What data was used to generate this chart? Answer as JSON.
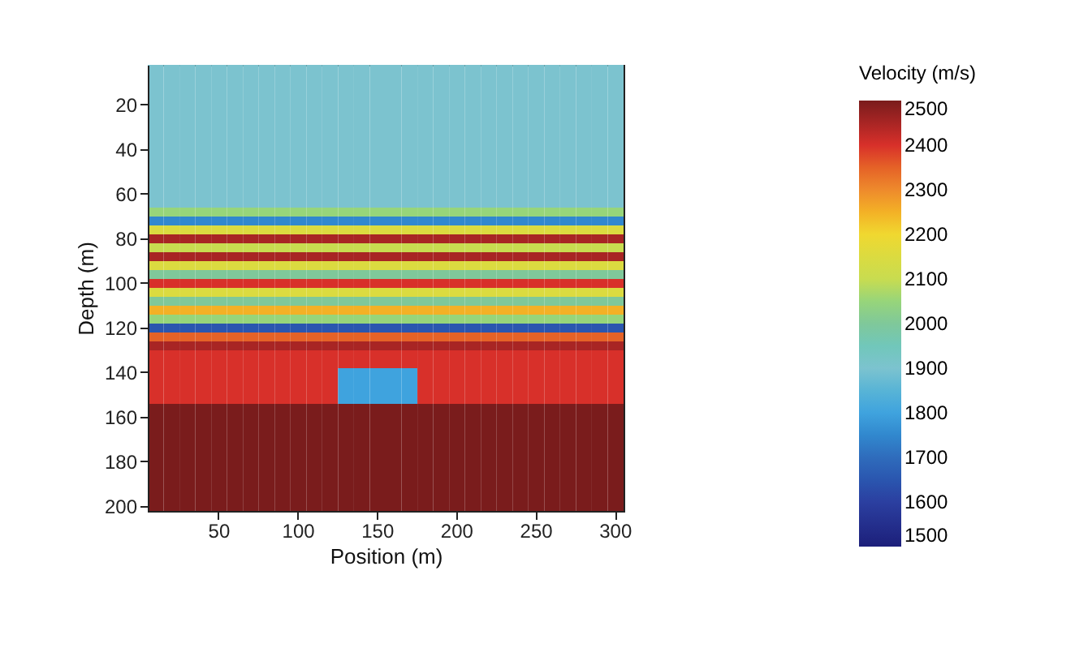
{
  "chart_data": {
    "type": "heatmap",
    "xlabel": "Position (m)",
    "ylabel": "Depth (m)",
    "clabel": "Velocity (m/s)",
    "categories": [
      null,
      null,
      null,
      null,
      "50",
      null,
      null,
      null,
      null,
      "100",
      null,
      null,
      null,
      null,
      "150",
      null,
      null,
      null,
      null,
      "200",
      null,
      null,
      null,
      null,
      "250",
      null,
      null,
      null,
      null,
      "300"
    ],
    "y_categories": [
      null,
      null,
      null,
      null,
      "20",
      null,
      null,
      null,
      null,
      "40",
      null,
      null,
      null,
      null,
      "60",
      null,
      null,
      null,
      null,
      "80",
      null,
      null,
      null,
      null,
      "100",
      null,
      null,
      null,
      null,
      "120",
      null,
      null,
      null,
      null,
      "140",
      null,
      null,
      null,
      null,
      "160",
      null,
      null,
      null,
      null,
      "180",
      null,
      null,
      null,
      null,
      "200"
    ],
    "cells": [
      [
        1900,
        1900,
        1900,
        1900,
        1900,
        1900,
        1900,
        1900,
        1900,
        1900,
        1900,
        1900,
        1900,
        1900,
        1900,
        1900,
        1900,
        1900,
        1900,
        1900,
        1900,
        1900,
        1900,
        1900,
        1900,
        1900,
        1900,
        1900,
        1900,
        1900
      ],
      [
        1900,
        1900,
        1900,
        1900,
        1900,
        1900,
        1900,
        1900,
        1900,
        1900,
        1900,
        1900,
        1900,
        1900,
        1900,
        1900,
        1900,
        1900,
        1900,
        1900,
        1900,
        1900,
        1900,
        1900,
        1900,
        1900,
        1900,
        1900,
        1900,
        1900
      ],
      [
        1900,
        1900,
        1900,
        1900,
        1900,
        1900,
        1900,
        1900,
        1900,
        1900,
        1900,
        1900,
        1900,
        1900,
        1900,
        1900,
        1900,
        1900,
        1900,
        1900,
        1900,
        1900,
        1900,
        1900,
        1900,
        1900,
        1900,
        1900,
        1900,
        1900
      ],
      [
        1900,
        1900,
        1900,
        1900,
        1900,
        1900,
        1900,
        1900,
        1900,
        1900,
        1900,
        1900,
        1900,
        1900,
        1900,
        1900,
        1900,
        1900,
        1900,
        1900,
        1900,
        1900,
        1900,
        1900,
        1900,
        1900,
        1900,
        1900,
        1900,
        1900
      ],
      [
        1900,
        1900,
        1900,
        1900,
        1900,
        1900,
        1900,
        1900,
        1900,
        1900,
        1900,
        1900,
        1900,
        1900,
        1900,
        1900,
        1900,
        1900,
        1900,
        1900,
        1900,
        1900,
        1900,
        1900,
        1900,
        1900,
        1900,
        1900,
        1900,
        1900
      ],
      [
        1900,
        1900,
        1900,
        1900,
        1900,
        1900,
        1900,
        1900,
        1900,
        1900,
        1900,
        1900,
        1900,
        1900,
        1900,
        1900,
        1900,
        1900,
        1900,
        1900,
        1900,
        1900,
        1900,
        1900,
        1900,
        1900,
        1900,
        1900,
        1900,
        1900
      ],
      [
        1900,
        1900,
        1900,
        1900,
        1900,
        1900,
        1900,
        1900,
        1900,
        1900,
        1900,
        1900,
        1900,
        1900,
        1900,
        1900,
        1900,
        1900,
        1900,
        1900,
        1900,
        1900,
        1900,
        1900,
        1900,
        1900,
        1900,
        1900,
        1900,
        1900
      ],
      [
        1900,
        1900,
        1900,
        1900,
        1900,
        1900,
        1900,
        1900,
        1900,
        1900,
        1900,
        1900,
        1900,
        1900,
        1900,
        1900,
        1900,
        1900,
        1900,
        1900,
        1900,
        1900,
        1900,
        1900,
        1900,
        1900,
        1900,
        1900,
        1900,
        1900
      ],
      [
        1900,
        1900,
        1900,
        1900,
        1900,
        1900,
        1900,
        1900,
        1900,
        1900,
        1900,
        1900,
        1900,
        1900,
        1900,
        1900,
        1900,
        1900,
        1900,
        1900,
        1900,
        1900,
        1900,
        1900,
        1900,
        1900,
        1900,
        1900,
        1900,
        1900
      ],
      [
        1900,
        1900,
        1900,
        1900,
        1900,
        1900,
        1900,
        1900,
        1900,
        1900,
        1900,
        1900,
        1900,
        1900,
        1900,
        1900,
        1900,
        1900,
        1900,
        1900,
        1900,
        1900,
        1900,
        1900,
        1900,
        1900,
        1900,
        1900,
        1900,
        1900
      ],
      [
        1900,
        1900,
        1900,
        1900,
        1900,
        1900,
        1900,
        1900,
        1900,
        1900,
        1900,
        1900,
        1900,
        1900,
        1900,
        1900,
        1900,
        1900,
        1900,
        1900,
        1900,
        1900,
        1900,
        1900,
        1900,
        1900,
        1900,
        1900,
        1900,
        1900
      ],
      [
        1900,
        1900,
        1900,
        1900,
        1900,
        1900,
        1900,
        1900,
        1900,
        1900,
        1900,
        1900,
        1900,
        1900,
        1900,
        1900,
        1900,
        1900,
        1900,
        1900,
        1900,
        1900,
        1900,
        1900,
        1900,
        1900,
        1900,
        1900,
        1900,
        1900
      ],
      [
        1900,
        1900,
        1900,
        1900,
        1900,
        1900,
        1900,
        1900,
        1900,
        1900,
        1900,
        1900,
        1900,
        1900,
        1900,
        1900,
        1900,
        1900,
        1900,
        1900,
        1900,
        1900,
        1900,
        1900,
        1900,
        1900,
        1900,
        1900,
        1900,
        1900
      ],
      [
        1900,
        1900,
        1900,
        1900,
        1900,
        1900,
        1900,
        1900,
        1900,
        1900,
        1900,
        1900,
        1900,
        1900,
        1900,
        1900,
        1900,
        1900,
        1900,
        1900,
        1900,
        1900,
        1900,
        1900,
        1900,
        1900,
        1900,
        1900,
        1900,
        1900
      ],
      [
        1900,
        1900,
        1900,
        1900,
        1900,
        1900,
        1900,
        1900,
        1900,
        1900,
        1900,
        1900,
        1900,
        1900,
        1900,
        1900,
        1900,
        1900,
        1900,
        1900,
        1900,
        1900,
        1900,
        1900,
        1900,
        1900,
        1900,
        1900,
        1900,
        1900
      ],
      [
        1900,
        1900,
        1900,
        1900,
        1900,
        1900,
        1900,
        1900,
        1900,
        1900,
        1900,
        1900,
        1900,
        1900,
        1900,
        1900,
        1900,
        1900,
        1900,
        1900,
        1900,
        1900,
        1900,
        1900,
        1900,
        1900,
        1900,
        1900,
        1900,
        1900
      ],
      [
        2050,
        2050,
        2050,
        2050,
        2050,
        2050,
        2050,
        2050,
        2050,
        2050,
        2050,
        2050,
        2050,
        2050,
        2050,
        2050,
        2050,
        2050,
        2050,
        2050,
        2050,
        2050,
        2050,
        2050,
        2050,
        2050,
        2050,
        2050,
        2050,
        2050
      ],
      [
        1750,
        1750,
        1750,
        1750,
        1750,
        1750,
        1750,
        1750,
        1750,
        1750,
        1750,
        1750,
        1750,
        1750,
        1750,
        1750,
        1750,
        1750,
        1750,
        1750,
        1750,
        1750,
        1750,
        1750,
        1750,
        1750,
        1750,
        1750,
        1750,
        1750
      ],
      [
        2150,
        2150,
        2150,
        2150,
        2150,
        2150,
        2150,
        2150,
        2150,
        2150,
        2150,
        2150,
        2150,
        2150,
        2150,
        2150,
        2150,
        2150,
        2150,
        2150,
        2150,
        2150,
        2150,
        2150,
        2150,
        2150,
        2150,
        2150,
        2150,
        2150
      ],
      [
        2450,
        2450,
        2450,
        2450,
        2450,
        2450,
        2450,
        2450,
        2450,
        2450,
        2450,
        2450,
        2450,
        2450,
        2450,
        2450,
        2450,
        2450,
        2450,
        2450,
        2450,
        2450,
        2450,
        2450,
        2450,
        2450,
        2450,
        2450,
        2450,
        2450
      ],
      [
        2100,
        2100,
        2100,
        2100,
        2100,
        2100,
        2100,
        2100,
        2100,
        2100,
        2100,
        2100,
        2100,
        2100,
        2100,
        2100,
        2100,
        2100,
        2100,
        2100,
        2100,
        2100,
        2100,
        2100,
        2100,
        2100,
        2100,
        2100,
        2100,
        2100
      ],
      [
        2450,
        2450,
        2450,
        2450,
        2450,
        2450,
        2450,
        2450,
        2450,
        2450,
        2450,
        2450,
        2450,
        2450,
        2450,
        2450,
        2450,
        2450,
        2450,
        2450,
        2450,
        2450,
        2450,
        2450,
        2450,
        2450,
        2450,
        2450,
        2450,
        2450
      ],
      [
        2150,
        2150,
        2150,
        2150,
        2150,
        2150,
        2150,
        2150,
        2150,
        2150,
        2150,
        2150,
        2150,
        2150,
        2150,
        2150,
        2150,
        2150,
        2150,
        2150,
        2150,
        2150,
        2150,
        2150,
        2150,
        2150,
        2150,
        2150,
        2150,
        2150
      ],
      [
        2000,
        2000,
        2000,
        2000,
        2000,
        2000,
        2000,
        2000,
        2000,
        2000,
        2000,
        2000,
        2000,
        2000,
        2000,
        2000,
        2000,
        2000,
        2000,
        2000,
        2000,
        2000,
        2000,
        2000,
        2000,
        2000,
        2000,
        2000,
        2000,
        2000
      ],
      [
        2400,
        2400,
        2400,
        2400,
        2400,
        2400,
        2400,
        2400,
        2400,
        2400,
        2400,
        2400,
        2400,
        2400,
        2400,
        2400,
        2400,
        2400,
        2400,
        2400,
        2400,
        2400,
        2400,
        2400,
        2400,
        2400,
        2400,
        2400,
        2400,
        2400
      ],
      [
        2150,
        2150,
        2150,
        2150,
        2150,
        2150,
        2150,
        2150,
        2150,
        2150,
        2150,
        2150,
        2150,
        2150,
        2150,
        2150,
        2150,
        2150,
        2150,
        2150,
        2150,
        2150,
        2150,
        2150,
        2150,
        2150,
        2150,
        2150,
        2150,
        2150
      ],
      [
        2000,
        2000,
        2000,
        2000,
        2000,
        2000,
        2000,
        2000,
        2000,
        2000,
        2000,
        2000,
        2000,
        2000,
        2000,
        2000,
        2000,
        2000,
        2000,
        2000,
        2000,
        2000,
        2000,
        2000,
        2000,
        2000,
        2000,
        2000,
        2000,
        2000
      ],
      [
        2250,
        2250,
        2250,
        2250,
        2250,
        2250,
        2250,
        2250,
        2250,
        2250,
        2250,
        2250,
        2250,
        2250,
        2250,
        2250,
        2250,
        2250,
        2250,
        2250,
        2250,
        2250,
        2250,
        2250,
        2250,
        2250,
        2250,
        2250,
        2250,
        2250
      ],
      [
        2050,
        2050,
        2050,
        2050,
        2050,
        2050,
        2050,
        2050,
        2050,
        2050,
        2050,
        2050,
        2050,
        2050,
        2050,
        2050,
        2050,
        2050,
        2050,
        2050,
        2050,
        2050,
        2050,
        2050,
        2050,
        2050,
        2050,
        2050,
        2050,
        2050
      ],
      [
        1650,
        1650,
        1650,
        1650,
        1650,
        1650,
        1650,
        1650,
        1650,
        1650,
        1650,
        1650,
        1650,
        1650,
        1650,
        1650,
        1650,
        1650,
        1650,
        1650,
        1650,
        1650,
        1650,
        1650,
        1650,
        1650,
        1650,
        1650,
        1650,
        1650
      ],
      [
        2350,
        2350,
        2350,
        2350,
        2350,
        2350,
        2350,
        2350,
        2350,
        2350,
        2350,
        2350,
        2350,
        2350,
        2350,
        2350,
        2350,
        2350,
        2350,
        2350,
        2350,
        2350,
        2350,
        2350,
        2350,
        2350,
        2350,
        2350,
        2350,
        2350
      ],
      [
        2450,
        2450,
        2450,
        2450,
        2450,
        2450,
        2450,
        2450,
        2450,
        2450,
        2450,
        2450,
        2450,
        2450,
        2450,
        2450,
        2450,
        2450,
        2450,
        2450,
        2450,
        2450,
        2450,
        2450,
        2450,
        2450,
        2450,
        2450,
        2450,
        2450
      ],
      [
        2400,
        2400,
        2400,
        2400,
        2400,
        2400,
        2400,
        2400,
        2400,
        2400,
        2400,
        2400,
        2400,
        2400,
        2400,
        2400,
        2400,
        2400,
        2400,
        2400,
        2400,
        2400,
        2400,
        2400,
        2400,
        2400,
        2400,
        2400,
        2400,
        2400
      ],
      [
        2400,
        2400,
        2400,
        2400,
        2400,
        2400,
        2400,
        2400,
        2400,
        2400,
        2400,
        2400,
        2400,
        2400,
        2400,
        2400,
        2400,
        2400,
        2400,
        2400,
        2400,
        2400,
        2400,
        2400,
        2400,
        2400,
        2400,
        2400,
        2400,
        2400
      ],
      [
        2400,
        2400,
        2400,
        2400,
        2400,
        2400,
        2400,
        2400,
        2400,
        2400,
        2400,
        2400,
        1800,
        1800,
        1800,
        1800,
        1800,
        2400,
        2400,
        2400,
        2400,
        2400,
        2400,
        2400,
        2400,
        2400,
        2400,
        2400,
        2400,
        2400
      ],
      [
        2400,
        2400,
        2400,
        2400,
        2400,
        2400,
        2400,
        2400,
        2400,
        2400,
        2400,
        2400,
        1800,
        1800,
        1800,
        1800,
        1800,
        2400,
        2400,
        2400,
        2400,
        2400,
        2400,
        2400,
        2400,
        2400,
        2400,
        2400,
        2400,
        2400
      ],
      [
        2400,
        2400,
        2400,
        2400,
        2400,
        2400,
        2400,
        2400,
        2400,
        2400,
        2400,
        2400,
        1800,
        1800,
        1800,
        1800,
        1800,
        2400,
        2400,
        2400,
        2400,
        2400,
        2400,
        2400,
        2400,
        2400,
        2400,
        2400,
        2400,
        2400
      ],
      [
        2400,
        2400,
        2400,
        2400,
        2400,
        2400,
        2400,
        2400,
        2400,
        2400,
        2400,
        2400,
        1800,
        1800,
        1800,
        1800,
        1800,
        2400,
        2400,
        2400,
        2400,
        2400,
        2400,
        2400,
        2400,
        2400,
        2400,
        2400,
        2400,
        2400
      ],
      [
        2500,
        2500,
        2500,
        2500,
        2500,
        2500,
        2500,
        2500,
        2500,
        2500,
        2500,
        2500,
        2500,
        2500,
        2500,
        2500,
        2500,
        2500,
        2500,
        2500,
        2500,
        2500,
        2500,
        2500,
        2500,
        2500,
        2500,
        2500,
        2500,
        2500
      ],
      [
        2500,
        2500,
        2500,
        2500,
        2500,
        2500,
        2500,
        2500,
        2500,
        2500,
        2500,
        2500,
        2500,
        2500,
        2500,
        2500,
        2500,
        2500,
        2500,
        2500,
        2500,
        2500,
        2500,
        2500,
        2500,
        2500,
        2500,
        2500,
        2500,
        2500
      ],
      [
        2500,
        2500,
        2500,
        2500,
        2500,
        2500,
        2500,
        2500,
        2500,
        2500,
        2500,
        2500,
        2500,
        2500,
        2500,
        2500,
        2500,
        2500,
        2500,
        2500,
        2500,
        2500,
        2500,
        2500,
        2500,
        2500,
        2500,
        2500,
        2500,
        2500
      ],
      [
        2500,
        2500,
        2500,
        2500,
        2500,
        2500,
        2500,
        2500,
        2500,
        2500,
        2500,
        2500,
        2500,
        2500,
        2500,
        2500,
        2500,
        2500,
        2500,
        2500,
        2500,
        2500,
        2500,
        2500,
        2500,
        2500,
        2500,
        2500,
        2500,
        2500
      ],
      [
        2500,
        2500,
        2500,
        2500,
        2500,
        2500,
        2500,
        2500,
        2500,
        2500,
        2500,
        2500,
        2500,
        2500,
        2500,
        2500,
        2500,
        2500,
        2500,
        2500,
        2500,
        2500,
        2500,
        2500,
        2500,
        2500,
        2500,
        2500,
        2500,
        2500
      ],
      [
        2500,
        2500,
        2500,
        2500,
        2500,
        2500,
        2500,
        2500,
        2500,
        2500,
        2500,
        2500,
        2500,
        2500,
        2500,
        2500,
        2500,
        2500,
        2500,
        2500,
        2500,
        2500,
        2500,
        2500,
        2500,
        2500,
        2500,
        2500,
        2500,
        2500
      ],
      [
        2500,
        2500,
        2500,
        2500,
        2500,
        2500,
        2500,
        2500,
        2500,
        2500,
        2500,
        2500,
        2500,
        2500,
        2500,
        2500,
        2500,
        2500,
        2500,
        2500,
        2500,
        2500,
        2500,
        2500,
        2500,
        2500,
        2500,
        2500,
        2500,
        2500
      ],
      [
        2500,
        2500,
        2500,
        2500,
        2500,
        2500,
        2500,
        2500,
        2500,
        2500,
        2500,
        2500,
        2500,
        2500,
        2500,
        2500,
        2500,
        2500,
        2500,
        2500,
        2500,
        2500,
        2500,
        2500,
        2500,
        2500,
        2500,
        2500,
        2500,
        2500
      ],
      [
        2500,
        2500,
        2500,
        2500,
        2500,
        2500,
        2500,
        2500,
        2500,
        2500,
        2500,
        2500,
        2500,
        2500,
        2500,
        2500,
        2500,
        2500,
        2500,
        2500,
        2500,
        2500,
        2500,
        2500,
        2500,
        2500,
        2500,
        2500,
        2500,
        2500
      ],
      [
        2500,
        2500,
        2500,
        2500,
        2500,
        2500,
        2500,
        2500,
        2500,
        2500,
        2500,
        2500,
        2500,
        2500,
        2500,
        2500,
        2500,
        2500,
        2500,
        2500,
        2500,
        2500,
        2500,
        2500,
        2500,
        2500,
        2500,
        2500,
        2500,
        2500
      ],
      [
        2500,
        2500,
        2500,
        2500,
        2500,
        2500,
        2500,
        2500,
        2500,
        2500,
        2500,
        2500,
        2500,
        2500,
        2500,
        2500,
        2500,
        2500,
        2500,
        2500,
        2500,
        2500,
        2500,
        2500,
        2500,
        2500,
        2500,
        2500,
        2500,
        2500
      ],
      [
        2500,
        2500,
        2500,
        2500,
        2500,
        2500,
        2500,
        2500,
        2500,
        2500,
        2500,
        2500,
        2500,
        2500,
        2500,
        2500,
        2500,
        2500,
        2500,
        2500,
        2500,
        2500,
        2500,
        2500,
        2500,
        2500,
        2500,
        2500,
        2500,
        2500
      ]
    ],
    "clim": [
      1500,
      2500
    ],
    "cticks": [
      1500,
      1600,
      1700,
      1800,
      1900,
      2000,
      2100,
      2200,
      2300,
      2400,
      2500
    ]
  }
}
